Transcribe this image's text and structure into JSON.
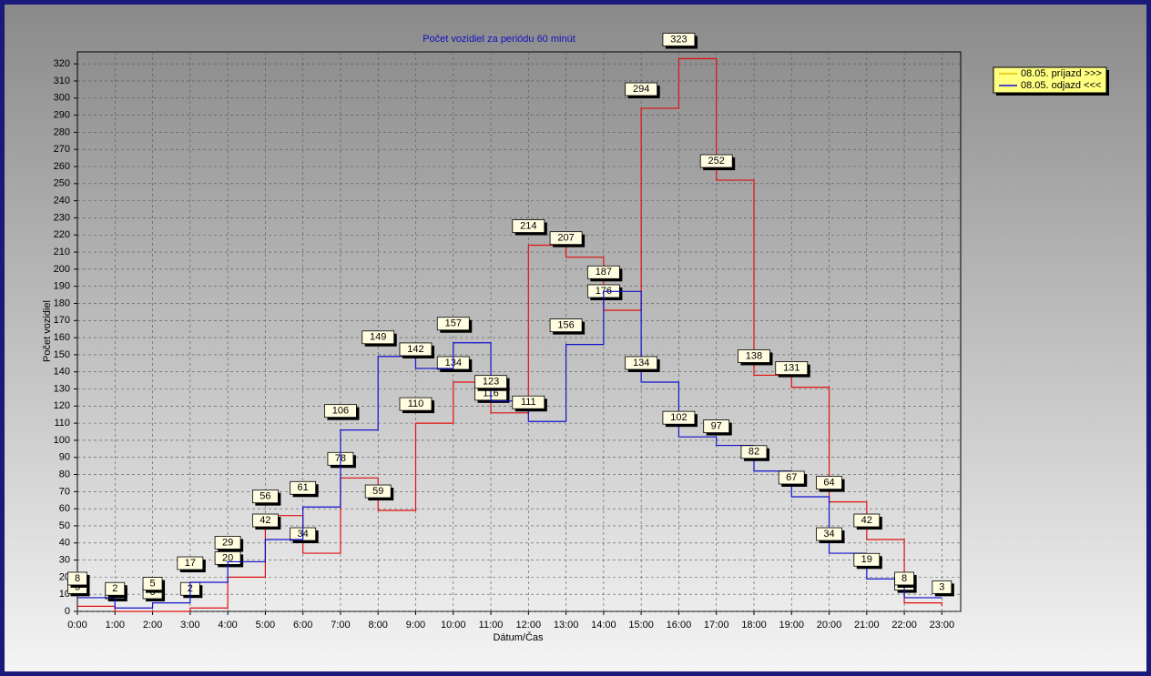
{
  "chart_data": {
    "type": "step",
    "title": "Počet vozidiel za periódu 60 minút",
    "x_label": "Dátum/Čas",
    "y_label": "Počet vozidiel",
    "categories": [
      "0:00",
      "1:00",
      "2:00",
      "3:00",
      "4:00",
      "5:00",
      "6:00",
      "7:00",
      "8:00",
      "9:00",
      "10:00",
      "11:00",
      "12:00",
      "13:00",
      "14:00",
      "15:00",
      "16:00",
      "17:00",
      "18:00",
      "19:00",
      "20:00",
      "21:00",
      "22:00",
      "23:00"
    ],
    "series": [
      {
        "name": "08.05.  príjazd >>>",
        "color": "#e01010",
        "values": [
          3,
          0,
          0,
          2,
          20,
          56,
          34,
          78,
          59,
          110,
          134,
          116,
          214,
          207,
          176,
          294,
          323,
          252,
          138,
          131,
          64,
          42,
          5,
          3
        ]
      },
      {
        "name": "08.05.  odjazd <<<",
        "color": "#1010d0",
        "values": [
          8,
          2,
          5,
          17,
          29,
          42,
          61,
          106,
          149,
          142,
          157,
          123,
          111,
          156,
          187,
          134,
          102,
          97,
          82,
          67,
          34,
          19,
          8,
          null
        ]
      }
    ],
    "ylim": [
      0,
      327
    ],
    "yticks": [
      0,
      10,
      20,
      30,
      40,
      50,
      60,
      70,
      80,
      90,
      100,
      110,
      120,
      130,
      140,
      150,
      160,
      170,
      180,
      190,
      200,
      210,
      220,
      230,
      240,
      250,
      260,
      270,
      280,
      290,
      300,
      310,
      320
    ],
    "grid": true,
    "legend": "top-right"
  }
}
